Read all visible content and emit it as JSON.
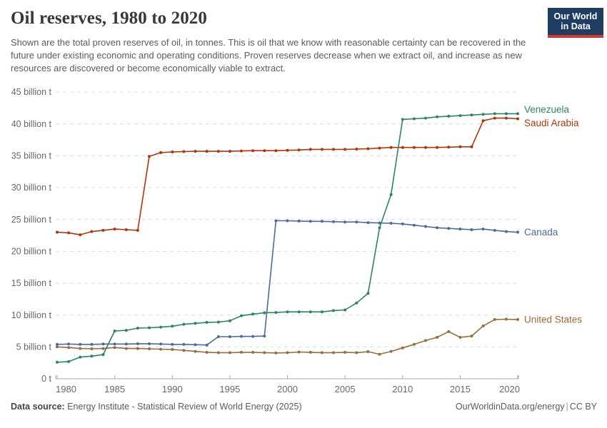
{
  "header": {
    "title": "Oil reserves, 1980 to 2020",
    "subtitle": "Shown are the total proven reserves of oil, in tonnes. This is oil that we know with reasonable certainty can be recovered in the future under existing economic and operating conditions. Proven reserves decrease when we extract oil, and increase as new resources are discovered or become economically viable to extract.",
    "logo": {
      "line1": "Our World",
      "line2": "in Data",
      "bg_color": "#1d3d63",
      "accent_color": "#d8352a"
    }
  },
  "chart_data": {
    "type": "line",
    "title": "Oil reserves, 1980 to 2020",
    "unit": "billion tonnes",
    "xlim": [
      1980,
      2020
    ],
    "ylim": [
      0,
      45
    ],
    "grid": "horizontal-dashed",
    "legend_position": "right-end-labels",
    "x": [
      1980,
      1981,
      1982,
      1983,
      1984,
      1985,
      1986,
      1987,
      1988,
      1989,
      1990,
      1991,
      1992,
      1993,
      1994,
      1995,
      1996,
      1997,
      1998,
      1999,
      2000,
      2001,
      2002,
      2003,
      2004,
      2005,
      2006,
      2007,
      2008,
      2009,
      2010,
      2011,
      2012,
      2013,
      2014,
      2015,
      2016,
      2017,
      2018,
      2019,
      2020
    ],
    "x_tick_labels": [
      "1980",
      "1985",
      "1990",
      "1995",
      "2000",
      "2005",
      "2010",
      "2015",
      "2020"
    ],
    "x_ticks": [
      1980,
      1985,
      1990,
      1995,
      2000,
      2005,
      2010,
      2015,
      2020
    ],
    "y_ticks": [
      0,
      5,
      10,
      15,
      20,
      25,
      30,
      35,
      40,
      45
    ],
    "y_tick_labels": [
      "0 t",
      "5 billion t",
      "10 billion t",
      "15 billion t",
      "20 billion t",
      "25 billion t",
      "30 billion t",
      "35 billion t",
      "40 billion t",
      "45 billion t"
    ],
    "series": [
      {
        "name": "Venezuela",
        "color": "#2c8465",
        "values": [
          2.6,
          2.7,
          3.4,
          3.55,
          3.8,
          7.5,
          7.6,
          7.95,
          8.0,
          8.1,
          8.25,
          8.55,
          8.7,
          8.85,
          8.9,
          9.1,
          9.9,
          10.15,
          10.35,
          10.4,
          10.5,
          10.5,
          10.5,
          10.5,
          10.7,
          10.8,
          11.9,
          13.4,
          23.7,
          28.9,
          40.7,
          40.8,
          40.9,
          41.1,
          41.2,
          41.3,
          41.4,
          41.5,
          41.6,
          41.6,
          41.6
        ]
      },
      {
        "name": "Saudi Arabia",
        "color": "#b13507",
        "values": [
          23.0,
          22.9,
          22.6,
          23.1,
          23.3,
          23.5,
          23.4,
          23.3,
          34.9,
          35.5,
          35.6,
          35.65,
          35.7,
          35.7,
          35.7,
          35.7,
          35.75,
          35.8,
          35.8,
          35.8,
          35.85,
          35.9,
          36.0,
          36.0,
          36.0,
          36.0,
          36.05,
          36.1,
          36.2,
          36.3,
          36.3,
          36.3,
          36.3,
          36.3,
          36.35,
          36.4,
          36.4,
          40.5,
          40.9,
          40.9,
          40.8
        ]
      },
      {
        "name": "Canada",
        "color": "#4c6a9c",
        "values": [
          5.4,
          5.45,
          5.4,
          5.4,
          5.45,
          5.45,
          5.45,
          5.5,
          5.5,
          5.45,
          5.4,
          5.4,
          5.35,
          5.3,
          6.6,
          6.6,
          6.65,
          6.65,
          6.7,
          24.8,
          24.8,
          24.75,
          24.7,
          24.7,
          24.65,
          24.6,
          24.6,
          24.5,
          24.45,
          24.4,
          24.3,
          24.1,
          23.9,
          23.7,
          23.6,
          23.5,
          23.4,
          23.5,
          23.3,
          23.1,
          23.0
        ]
      },
      {
        "name": "United States",
        "color": "#996d39",
        "values": [
          5.0,
          4.9,
          4.75,
          4.7,
          4.75,
          4.9,
          4.75,
          4.75,
          4.7,
          4.65,
          4.6,
          4.45,
          4.3,
          4.15,
          4.1,
          4.1,
          4.15,
          4.15,
          4.1,
          4.05,
          4.1,
          4.2,
          4.15,
          4.1,
          4.1,
          4.15,
          4.1,
          4.25,
          3.85,
          4.3,
          4.85,
          5.4,
          6.0,
          6.5,
          7.4,
          6.5,
          6.7,
          8.3,
          9.3,
          9.35,
          9.3
        ]
      }
    ],
    "style": {
      "gridline_color": "#dcdcdc",
      "axis_color": "#a8a8a8",
      "tick_text_color": "#686868"
    }
  },
  "footer": {
    "source_label": "Data source:",
    "source_text": "Energy Institute - Statistical Review of World Energy (2025)",
    "url": "OurWorldinData.org/energy",
    "divider": "|",
    "license": "CC BY"
  }
}
